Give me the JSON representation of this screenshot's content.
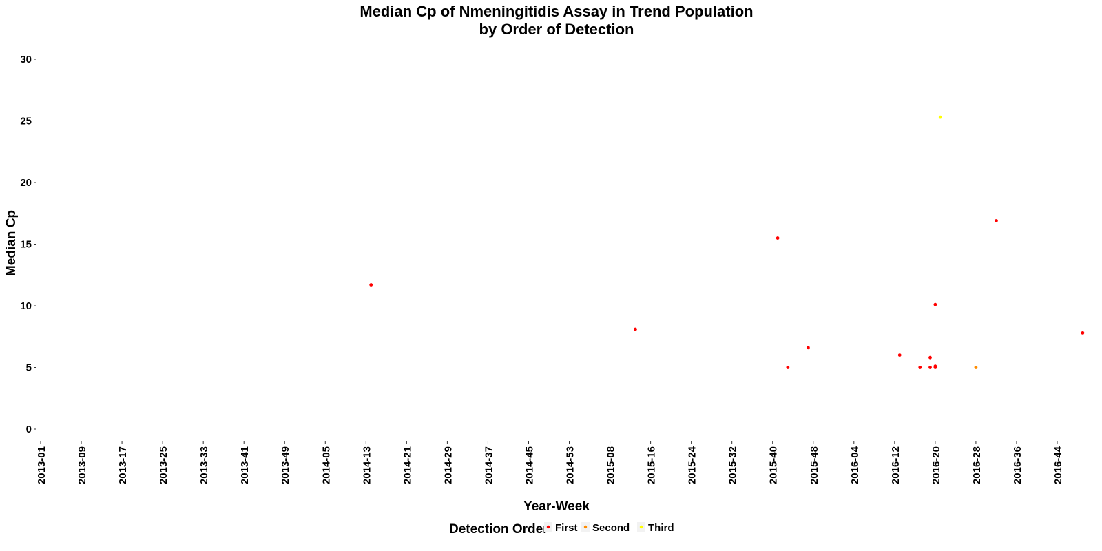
{
  "chart_data": {
    "type": "scatter",
    "title_line1": "Median Cp of Nmeningitidis Assay in Trend Population",
    "title_line2": "by Order of Detection",
    "xlabel": "Year-Week",
    "ylabel": "Median Cp",
    "x_ticks": [
      "2013-01",
      "2013-09",
      "2013-17",
      "2013-25",
      "2013-33",
      "2013-41",
      "2013-49",
      "2014-05",
      "2014-13",
      "2014-21",
      "2014-29",
      "2014-37",
      "2014-45",
      "2014-53",
      "2015-08",
      "2015-16",
      "2015-24",
      "2015-32",
      "2015-40",
      "2015-48",
      "2016-04",
      "2016-12",
      "2016-20",
      "2016-28",
      "2016-36",
      "2016-44"
    ],
    "y_ticks": [
      0,
      5,
      10,
      15,
      20,
      25,
      30
    ],
    "ylim": [
      0,
      30
    ],
    "grid": false,
    "legend_title": "Detection Order",
    "legend_position": "bottom",
    "series": [
      {
        "name": "First",
        "color": "#ff0000",
        "points": [
          {
            "x": "2014-14",
            "y": 11.7
          },
          {
            "x": "2015-13",
            "y": 8.1
          },
          {
            "x": "2015-41",
            "y": 15.5
          },
          {
            "x": "2015-43",
            "y": 5.0
          },
          {
            "x": "2015-47",
            "y": 6.6
          },
          {
            "x": "2016-13",
            "y": 6.0
          },
          {
            "x": "2016-17",
            "y": 5.0
          },
          {
            "x": "2016-19",
            "y": 5.8
          },
          {
            "x": "2016-19",
            "y": 5.0
          },
          {
            "x": "2016-20",
            "y": 10.1
          },
          {
            "x": "2016-20",
            "y": 5.1
          },
          {
            "x": "2016-20",
            "y": 5.0
          },
          {
            "x": "2016-32",
            "y": 16.9
          },
          {
            "x": "2016-49",
            "y": 7.8
          }
        ]
      },
      {
        "name": "Second",
        "color": "#ff8c00",
        "points": [
          {
            "x": "2016-28",
            "y": 5.0
          }
        ]
      },
      {
        "name": "Third",
        "color": "#ffff00",
        "points": [
          {
            "x": "2016-21",
            "y": 25.3
          }
        ]
      }
    ]
  }
}
